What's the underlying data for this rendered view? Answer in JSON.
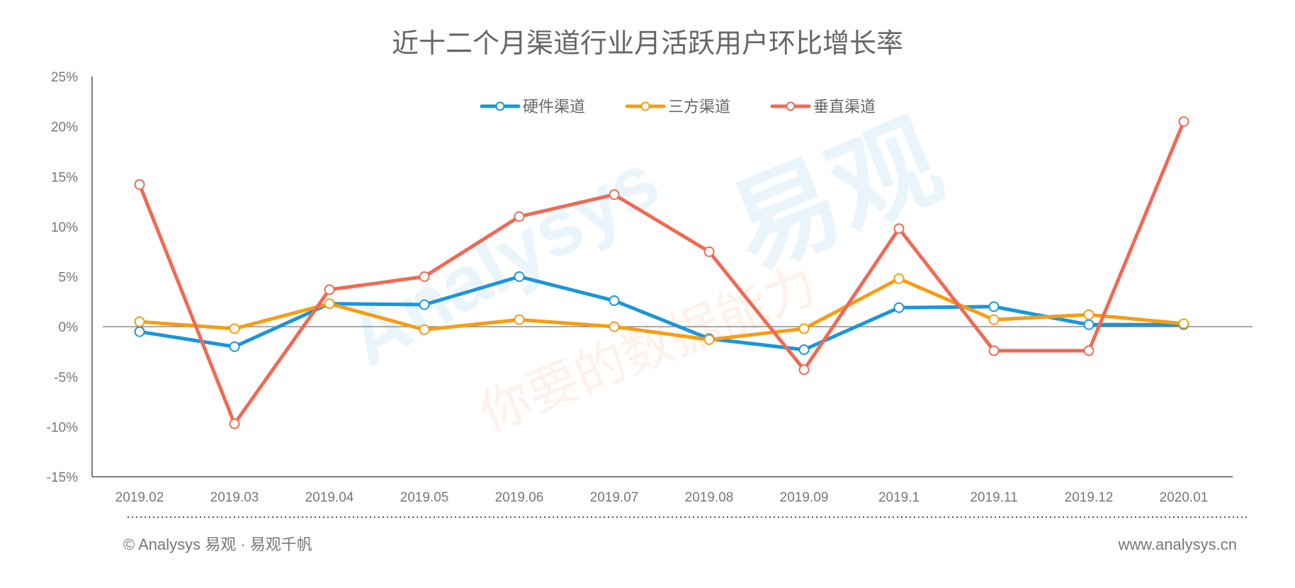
{
  "chart_data": {
    "type": "line",
    "title": "近十二个月渠道行业月活跃用户环比增长率",
    "categories": [
      "2019.02",
      "2019.03",
      "2019.04",
      "2019.05",
      "2019.06",
      "2019.07",
      "2019.08",
      "2019.09",
      "2019.1",
      "2019.11",
      "2019.12",
      "2020.01"
    ],
    "ylim": [
      -15,
      25
    ],
    "yticks": [
      -15,
      -10,
      -5,
      0,
      5,
      10,
      15,
      20,
      25
    ],
    "ytick_labels": [
      "-15%",
      "-10%",
      "-5%",
      "0%",
      "5%",
      "10%",
      "15%",
      "20%",
      "25%"
    ],
    "ylabel": "",
    "xlabel": "",
    "legend_position": "top-center",
    "series": [
      {
        "name": "硬件渠道",
        "color": "#1a96d9",
        "values": [
          -0.5,
          -2.0,
          2.3,
          2.2,
          5.0,
          2.6,
          -1.2,
          -2.3,
          1.9,
          2.0,
          0.2,
          0.2
        ]
      },
      {
        "name": "三方渠道",
        "color": "#f59d13",
        "values": [
          0.5,
          -0.2,
          2.3,
          -0.3,
          0.7,
          0.0,
          -1.3,
          -0.2,
          4.8,
          0.7,
          1.2,
          0.3
        ]
      },
      {
        "name": "垂直渠道",
        "color": "#ef6a55",
        "values": [
          14.2,
          -9.7,
          3.7,
          5.0,
          11.0,
          13.2,
          7.5,
          -4.3,
          9.8,
          -2.4,
          -2.4,
          20.5
        ]
      }
    ]
  },
  "watermark": {
    "brand": "Analysys",
    "brand_cn": "易观",
    "slogan": "你要的数据能力"
  },
  "footer": {
    "copyright": "© Analysys 易观 · 易观千帆",
    "website": "www.analysys.cn"
  }
}
